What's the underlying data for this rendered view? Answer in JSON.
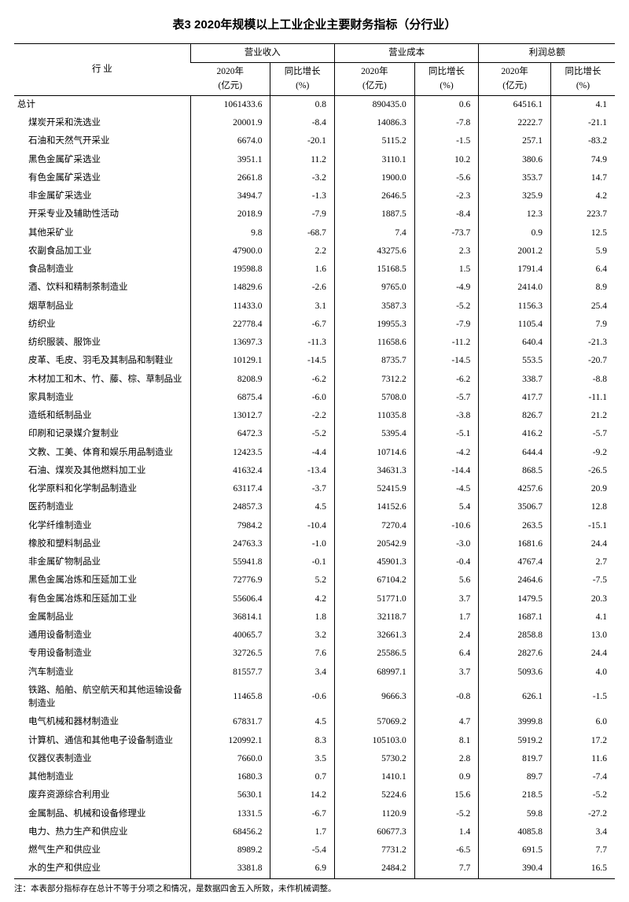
{
  "title": "表3  2020年规模以上工业企业主要财务指标（分行业）",
  "footnote": "注：本表部分指标存在总计不等于分项之和情况，是数据四舍五入所致，未作机械调整。",
  "header": {
    "industry": "行  业",
    "group1": "营业收入",
    "group2": "营业成本",
    "group3": "利润总额",
    "sub_year": "2020年\n(亿元)",
    "sub_growth": "同比增长\n(%)"
  },
  "columns": [
    "industry",
    "rev",
    "rev_g",
    "cost",
    "cost_g",
    "profit",
    "profit_g"
  ],
  "rows": [
    {
      "industry": "总计",
      "rev": "1061433.6",
      "rev_g": "0.8",
      "cost": "890435.0",
      "cost_g": "0.6",
      "profit": "64516.1",
      "profit_g": "4.1",
      "total": true
    },
    {
      "industry": "煤炭开采和洗选业",
      "rev": "20001.9",
      "rev_g": "-8.4",
      "cost": "14086.3",
      "cost_g": "-7.8",
      "profit": "2222.7",
      "profit_g": "-21.1"
    },
    {
      "industry": "石油和天然气开采业",
      "rev": "6674.0",
      "rev_g": "-20.1",
      "cost": "5115.2",
      "cost_g": "-1.5",
      "profit": "257.1",
      "profit_g": "-83.2"
    },
    {
      "industry": "黑色金属矿采选业",
      "rev": "3951.1",
      "rev_g": "11.2",
      "cost": "3110.1",
      "cost_g": "10.2",
      "profit": "380.6",
      "profit_g": "74.9"
    },
    {
      "industry": "有色金属矿采选业",
      "rev": "2661.8",
      "rev_g": "-3.2",
      "cost": "1900.0",
      "cost_g": "-5.6",
      "profit": "353.7",
      "profit_g": "14.7"
    },
    {
      "industry": "非金属矿采选业",
      "rev": "3494.7",
      "rev_g": "-1.3",
      "cost": "2646.5",
      "cost_g": "-2.3",
      "profit": "325.9",
      "profit_g": "4.2"
    },
    {
      "industry": "开采专业及辅助性活动",
      "rev": "2018.9",
      "rev_g": "-7.9",
      "cost": "1887.5",
      "cost_g": "-8.4",
      "profit": "12.3",
      "profit_g": "223.7"
    },
    {
      "industry": "其他采矿业",
      "rev": "9.8",
      "rev_g": "-68.7",
      "cost": "7.4",
      "cost_g": "-73.7",
      "profit": "0.9",
      "profit_g": "12.5"
    },
    {
      "industry": "农副食品加工业",
      "rev": "47900.0",
      "rev_g": "2.2",
      "cost": "43275.6",
      "cost_g": "2.3",
      "profit": "2001.2",
      "profit_g": "5.9"
    },
    {
      "industry": "食品制造业",
      "rev": "19598.8",
      "rev_g": "1.6",
      "cost": "15168.5",
      "cost_g": "1.5",
      "profit": "1791.4",
      "profit_g": "6.4"
    },
    {
      "industry": "酒、饮料和精制茶制造业",
      "rev": "14829.6",
      "rev_g": "-2.6",
      "cost": "9765.0",
      "cost_g": "-4.9",
      "profit": "2414.0",
      "profit_g": "8.9"
    },
    {
      "industry": "烟草制品业",
      "rev": "11433.0",
      "rev_g": "3.1",
      "cost": "3587.3",
      "cost_g": "-5.2",
      "profit": "1156.3",
      "profit_g": "25.4"
    },
    {
      "industry": "纺织业",
      "rev": "22778.4",
      "rev_g": "-6.7",
      "cost": "19955.3",
      "cost_g": "-7.9",
      "profit": "1105.4",
      "profit_g": "7.9"
    },
    {
      "industry": "纺织服装、服饰业",
      "rev": "13697.3",
      "rev_g": "-11.3",
      "cost": "11658.6",
      "cost_g": "-11.2",
      "profit": "640.4",
      "profit_g": "-21.3"
    },
    {
      "industry": "皮革、毛皮、羽毛及其制品和制鞋业",
      "rev": "10129.1",
      "rev_g": "-14.5",
      "cost": "8735.7",
      "cost_g": "-14.5",
      "profit": "553.5",
      "profit_g": "-20.7"
    },
    {
      "industry": "木材加工和木、竹、藤、棕、草制品业",
      "rev": "8208.9",
      "rev_g": "-6.2",
      "cost": "7312.2",
      "cost_g": "-6.2",
      "profit": "338.7",
      "profit_g": "-8.8"
    },
    {
      "industry": "家具制造业",
      "rev": "6875.4",
      "rev_g": "-6.0",
      "cost": "5708.0",
      "cost_g": "-5.7",
      "profit": "417.7",
      "profit_g": "-11.1"
    },
    {
      "industry": "造纸和纸制品业",
      "rev": "13012.7",
      "rev_g": "-2.2",
      "cost": "11035.8",
      "cost_g": "-3.8",
      "profit": "826.7",
      "profit_g": "21.2"
    },
    {
      "industry": "印刷和记录媒介复制业",
      "rev": "6472.3",
      "rev_g": "-5.2",
      "cost": "5395.4",
      "cost_g": "-5.1",
      "profit": "416.2",
      "profit_g": "-5.7"
    },
    {
      "industry": "文教、工美、体育和娱乐用品制造业",
      "rev": "12423.5",
      "rev_g": "-4.4",
      "cost": "10714.6",
      "cost_g": "-4.2",
      "profit": "644.4",
      "profit_g": "-9.2"
    },
    {
      "industry": "石油、煤炭及其他燃料加工业",
      "rev": "41632.4",
      "rev_g": "-13.4",
      "cost": "34631.3",
      "cost_g": "-14.4",
      "profit": "868.5",
      "profit_g": "-26.5"
    },
    {
      "industry": "化学原料和化学制品制造业",
      "rev": "63117.4",
      "rev_g": "-3.7",
      "cost": "52415.9",
      "cost_g": "-4.5",
      "profit": "4257.6",
      "profit_g": "20.9"
    },
    {
      "industry": "医药制造业",
      "rev": "24857.3",
      "rev_g": "4.5",
      "cost": "14152.6",
      "cost_g": "5.4",
      "profit": "3506.7",
      "profit_g": "12.8"
    },
    {
      "industry": "化学纤维制造业",
      "rev": "7984.2",
      "rev_g": "-10.4",
      "cost": "7270.4",
      "cost_g": "-10.6",
      "profit": "263.5",
      "profit_g": "-15.1"
    },
    {
      "industry": "橡胶和塑料制品业",
      "rev": "24763.3",
      "rev_g": "-1.0",
      "cost": "20542.9",
      "cost_g": "-3.0",
      "profit": "1681.6",
      "profit_g": "24.4"
    },
    {
      "industry": "非金属矿物制品业",
      "rev": "55941.8",
      "rev_g": "-0.1",
      "cost": "45901.3",
      "cost_g": "-0.4",
      "profit": "4767.4",
      "profit_g": "2.7"
    },
    {
      "industry": "黑色金属冶炼和压延加工业",
      "rev": "72776.9",
      "rev_g": "5.2",
      "cost": "67104.2",
      "cost_g": "5.6",
      "profit": "2464.6",
      "profit_g": "-7.5"
    },
    {
      "industry": "有色金属冶炼和压延加工业",
      "rev": "55606.4",
      "rev_g": "4.2",
      "cost": "51771.0",
      "cost_g": "3.7",
      "profit": "1479.5",
      "profit_g": "20.3"
    },
    {
      "industry": "金属制品业",
      "rev": "36814.1",
      "rev_g": "1.8",
      "cost": "32118.7",
      "cost_g": "1.7",
      "profit": "1687.1",
      "profit_g": "4.1"
    },
    {
      "industry": "通用设备制造业",
      "rev": "40065.7",
      "rev_g": "3.2",
      "cost": "32661.3",
      "cost_g": "2.4",
      "profit": "2858.8",
      "profit_g": "13.0"
    },
    {
      "industry": "专用设备制造业",
      "rev": "32726.5",
      "rev_g": "7.6",
      "cost": "25586.5",
      "cost_g": "6.4",
      "profit": "2827.6",
      "profit_g": "24.4"
    },
    {
      "industry": "汽车制造业",
      "rev": "81557.7",
      "rev_g": "3.4",
      "cost": "68997.1",
      "cost_g": "3.7",
      "profit": "5093.6",
      "profit_g": "4.0"
    },
    {
      "industry": "铁路、船舶、航空航天和其他运输设备制造业",
      "rev": "11465.8",
      "rev_g": "-0.6",
      "cost": "9666.3",
      "cost_g": "-0.8",
      "profit": "626.1",
      "profit_g": "-1.5"
    },
    {
      "industry": "电气机械和器材制造业",
      "rev": "67831.7",
      "rev_g": "4.5",
      "cost": "57069.2",
      "cost_g": "4.7",
      "profit": "3999.8",
      "profit_g": "6.0"
    },
    {
      "industry": "计算机、通信和其他电子设备制造业",
      "rev": "120992.1",
      "rev_g": "8.3",
      "cost": "105103.0",
      "cost_g": "8.1",
      "profit": "5919.2",
      "profit_g": "17.2"
    },
    {
      "industry": "仪器仪表制造业",
      "rev": "7660.0",
      "rev_g": "3.5",
      "cost": "5730.2",
      "cost_g": "2.8",
      "profit": "819.7",
      "profit_g": "11.6"
    },
    {
      "industry": "其他制造业",
      "rev": "1680.3",
      "rev_g": "0.7",
      "cost": "1410.1",
      "cost_g": "0.9",
      "profit": "89.7",
      "profit_g": "-7.4"
    },
    {
      "industry": "废弃资源综合利用业",
      "rev": "5630.1",
      "rev_g": "14.2",
      "cost": "5224.6",
      "cost_g": "15.6",
      "profit": "218.5",
      "profit_g": "-5.2"
    },
    {
      "industry": "金属制品、机械和设备修理业",
      "rev": "1331.5",
      "rev_g": "-6.7",
      "cost": "1120.9",
      "cost_g": "-5.2",
      "profit": "59.8",
      "profit_g": "-27.2"
    },
    {
      "industry": "电力、热力生产和供应业",
      "rev": "68456.2",
      "rev_g": "1.7",
      "cost": "60677.3",
      "cost_g": "1.4",
      "profit": "4085.8",
      "profit_g": "3.4"
    },
    {
      "industry": "燃气生产和供应业",
      "rev": "8989.2",
      "rev_g": "-5.4",
      "cost": "7731.2",
      "cost_g": "-6.5",
      "profit": "691.5",
      "profit_g": "7.7"
    },
    {
      "industry": "水的生产和供应业",
      "rev": "3381.8",
      "rev_g": "6.9",
      "cost": "2484.2",
      "cost_g": "7.7",
      "profit": "390.4",
      "profit_g": "16.5"
    }
  ]
}
